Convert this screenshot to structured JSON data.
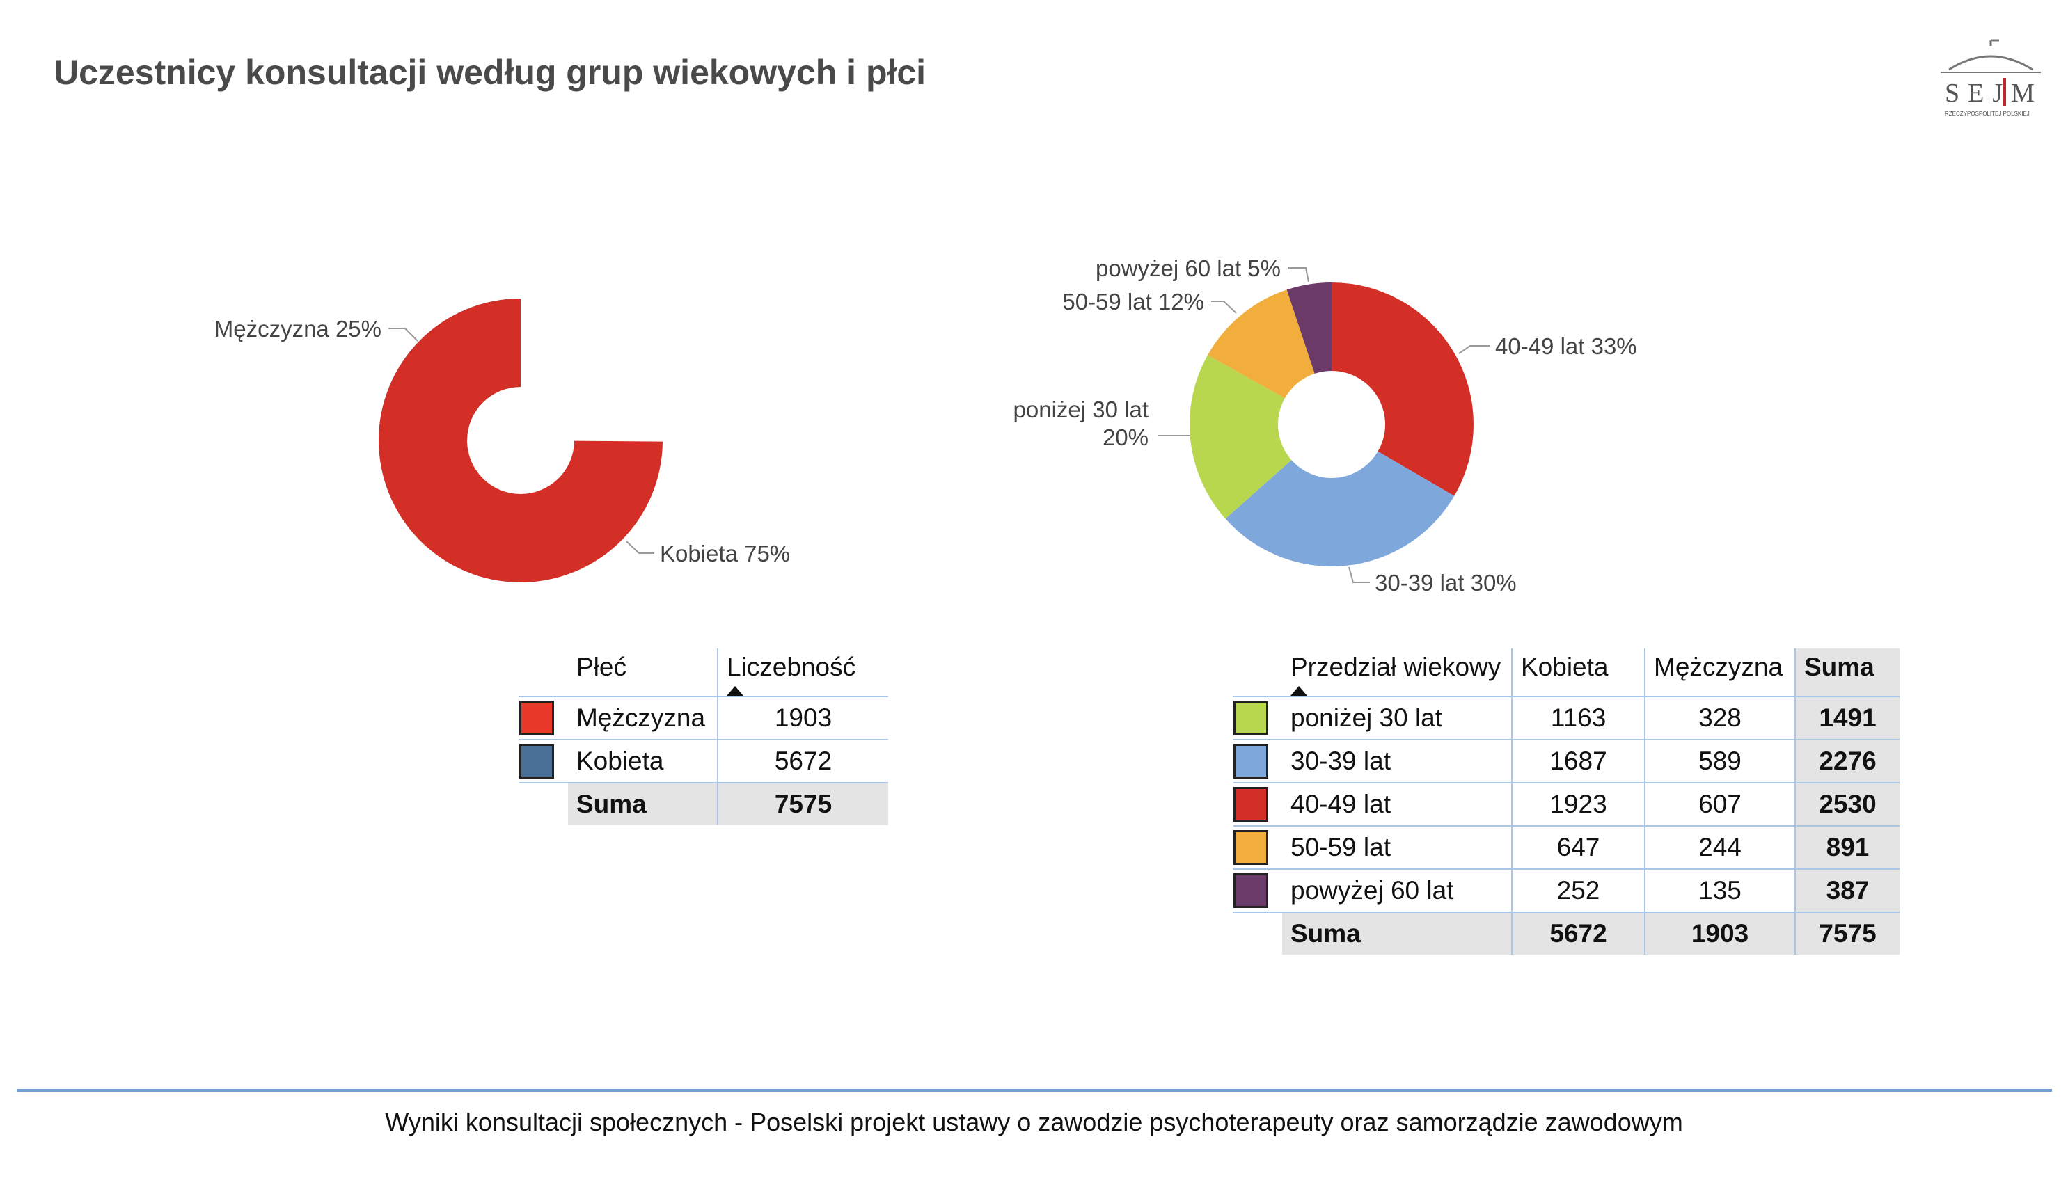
{
  "header": {
    "title": "Uczestnicy konsultacji według grup wiekowych i płci"
  },
  "logo": {
    "text": "SEJM",
    "subtext": "RZECZYPOSPOLITEJ POLSKIEJ"
  },
  "chart_data": [
    {
      "type": "pie",
      "donut": true,
      "title": "",
      "slices": [
        {
          "label": "Mężczyzna",
          "percent": "25%",
          "value": 1903,
          "color": "#4a6f96"
        },
        {
          "label": "Kobieta",
          "percent": "75%",
          "value": 5672,
          "color": "#d32f27"
        }
      ]
    },
    {
      "type": "pie",
      "donut": true,
      "title": "",
      "slices": [
        {
          "label": "40-49 lat",
          "percent": "33%",
          "value": 2530,
          "color": "#d32f27"
        },
        {
          "label": "30-39 lat",
          "percent": "30%",
          "value": 2276,
          "color": "#7ea8dc"
        },
        {
          "label": "poniżej 30 lat",
          "percent": "20%",
          "value": 1491,
          "color": "#b8d64e"
        },
        {
          "label": "50-59 lat",
          "percent": "12%",
          "value": 891,
          "color": "#f2ae3d"
        },
        {
          "label": "powyżej 60 lat",
          "percent": "5%",
          "value": 387,
          "color": "#6b3a68"
        }
      ]
    }
  ],
  "table_gender": {
    "headers": [
      "Płeć",
      "Liczebność"
    ],
    "rows": [
      {
        "label": "Mężczyzna",
        "count": "1903",
        "color": "#e8392a"
      },
      {
        "label": "Kobieta",
        "count": "5672",
        "color": "#4a6f96"
      }
    ],
    "total": {
      "label": "Suma",
      "count": "7575"
    }
  },
  "table_age": {
    "headers": [
      "Przedział wiekowy",
      "Kobieta",
      "Mężczyzna",
      "Suma"
    ],
    "rows": [
      {
        "label": "poniżej 30 lat",
        "kobieta": "1163",
        "mezczyzna": "328",
        "suma": "1491",
        "color": "#b8d64e"
      },
      {
        "label": "30-39 lat",
        "kobieta": "1687",
        "mezczyzna": "589",
        "suma": "2276",
        "color": "#7ea8dc"
      },
      {
        "label": "40-49 lat",
        "kobieta": "1923",
        "mezczyzna": "607",
        "suma": "2530",
        "color": "#d32f27"
      },
      {
        "label": "50-59 lat",
        "kobieta": "647",
        "mezczyzna": "244",
        "suma": "891",
        "color": "#f2ae3d"
      },
      {
        "label": "powyżej 60 lat",
        "kobieta": "252",
        "mezczyzna": "135",
        "suma": "387",
        "color": "#6b3a68"
      }
    ],
    "total": {
      "label": "Suma",
      "kobieta": "5672",
      "mezczyzna": "1903",
      "suma": "7575"
    }
  },
  "footer": {
    "text": "Wyniki konsultacji społecznych - Poselski projekt ustawy o zawodzie psychoterapeuty oraz samorządzie zawodowym"
  }
}
